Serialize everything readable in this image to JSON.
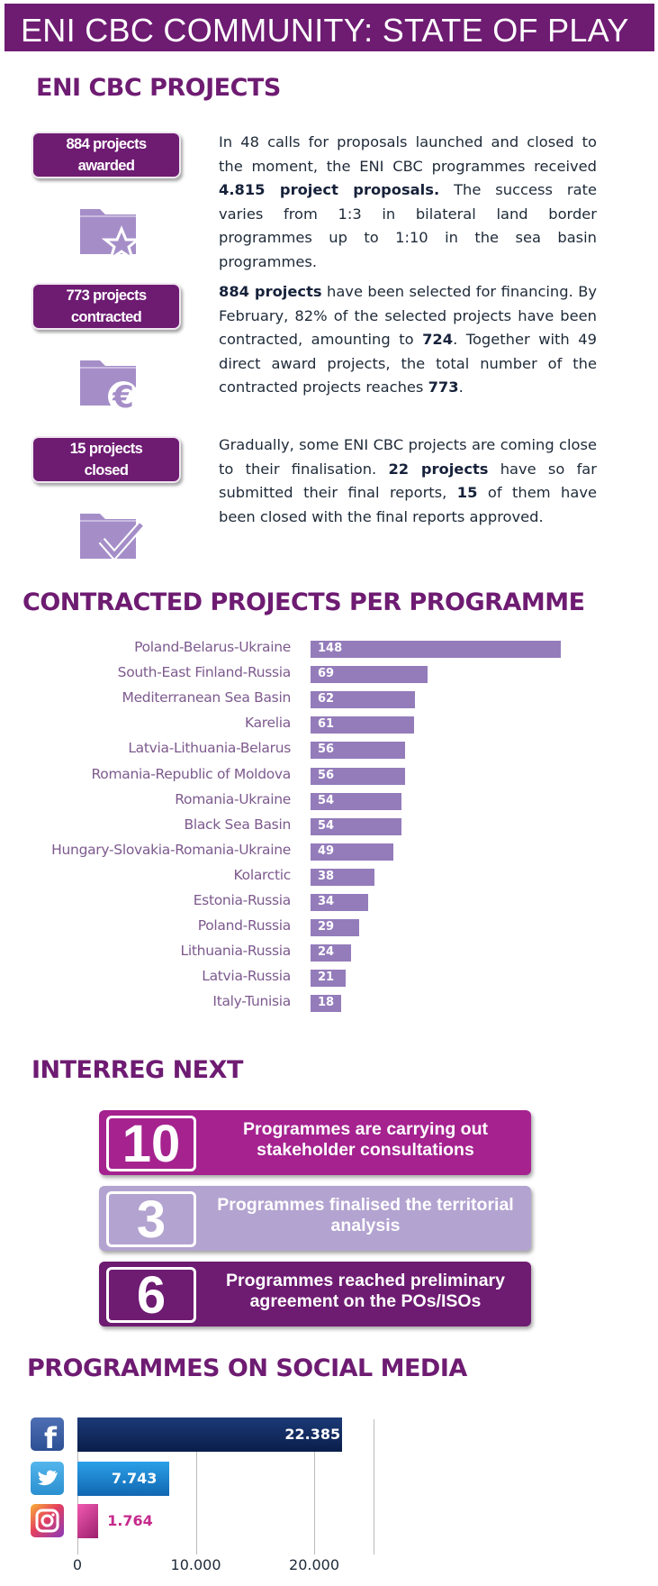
{
  "header": {
    "title": "ENI CBC COMMUNITY: STATE OF PLAY"
  },
  "projects": {
    "heading": "ENI CBC PROJECTS",
    "items": [
      {
        "badge": "884 projects awarded",
        "icon": "folder-star-icon",
        "text_parts": [
          {
            "t": "In 48 calls for proposals launched and closed to the moment, the ENI CBC programmes received ",
            "b": false
          },
          {
            "t": "4.815 project proposals.",
            "b": true
          },
          {
            "t": " The success rate varies from 1:3 in bilateral land border programmes up to 1:10 in the sea basin programmes.",
            "b": false
          }
        ]
      },
      {
        "badge": "773 projects contracted",
        "icon": "folder-euro-icon",
        "text_parts": [
          {
            "t": "884 projects",
            "b": true
          },
          {
            "t": " have been selected for financing. By February, 82% of the selected projects have been contracted, amounting to ",
            "b": false
          },
          {
            "t": "724",
            "b": true
          },
          {
            "t": ". Together with 49 direct award projects, the total number of the contracted projects reaches ",
            "b": false
          },
          {
            "t": "773",
            "b": true
          },
          {
            "t": ".",
            "b": false
          }
        ]
      },
      {
        "badge": "15 projects closed",
        "icon": "folder-check-icon",
        "text_parts": [
          {
            "t": "Gradually, some ENI CBC projects are coming close to their finalisation. ",
            "b": false
          },
          {
            "t": "22 projects",
            "b": true
          },
          {
            "t": " have so far submitted their final reports, ",
            "b": false
          },
          {
            "t": "15",
            "b": true
          },
          {
            "t": " of them have been closed with the final reports approved.",
            "b": false
          }
        ]
      }
    ]
  },
  "chart_data": [
    {
      "type": "bar",
      "title": "CONTRACTED PROJECTS PER PROGRAMME",
      "orientation": "horizontal",
      "categories": [
        "Poland-Belarus-Ukraine",
        "South-East Finland-Russia",
        "Mediterranean Sea Basin",
        "Karelia",
        "Latvia-Lithuania-Belarus",
        "Romania-Republic of Moldova",
        "Romania-Ukraine",
        "Black Sea Basin",
        "Hungary-Slovakia-Romania-Ukraine",
        "Kolarctic",
        "Estonia-Russia",
        "Poland-Russia",
        "Lithuania-Russia",
        "Latvia-Russia",
        "Italy-Tunisia"
      ],
      "values": [
        148,
        69,
        62,
        61,
        56,
        56,
        54,
        54,
        49,
        38,
        34,
        29,
        24,
        21,
        18
      ],
      "color": "#947cbb"
    },
    {
      "type": "bar",
      "title": "PROGRAMMES ON SOCIAL MEDIA",
      "orientation": "horizontal",
      "categories": [
        "Facebook",
        "Twitter",
        "Instagram"
      ],
      "values": [
        22385,
        7743,
        1764
      ],
      "value_labels": [
        "22.385",
        "7.743",
        "1.764"
      ],
      "icons": [
        "facebook-icon",
        "twitter-icon",
        "instagram-icon"
      ],
      "colors": [
        "#102a5e",
        "#1a86d0",
        "#c62a8c"
      ],
      "xlim": [
        0,
        26000
      ],
      "xticks": [
        0,
        10000,
        20000
      ],
      "xtick_labels": [
        "0",
        "10.000",
        "20.000"
      ],
      "grid": true
    }
  ],
  "interreg": {
    "heading": "INTERREG NEXT",
    "items": [
      {
        "number": "10",
        "text": "Programmes are carrying out stakeholder consultations",
        "color": "#a5228f"
      },
      {
        "number": "3",
        "text": "Programmes finalised the territorial analysis",
        "color": "#b3a3d0"
      },
      {
        "number": "6",
        "text": "Programmes reached preliminary agreement on the POs/ISOs",
        "color": "#6e1b72"
      }
    ]
  }
}
